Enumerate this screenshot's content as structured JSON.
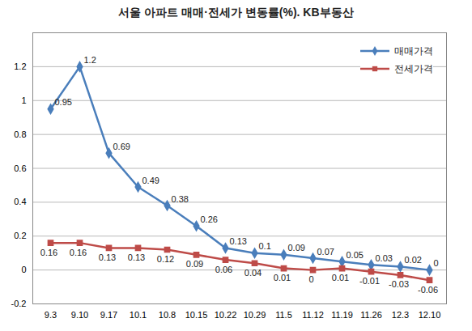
{
  "chart_data": {
    "type": "line",
    "title": "서울 아파트 매매·전세가 변동률(%). KB부동산",
    "categories": [
      "9.3",
      "9.10",
      "9.17",
      "10.1",
      "10.8",
      "10.15",
      "10.22",
      "10.29",
      "11.5",
      "11.12",
      "11.19",
      "11.26",
      "12.3",
      "12.10"
    ],
    "series": [
      {
        "name": "매매가격",
        "color": "#4a7ebb",
        "marker": "diamond",
        "values": [
          0.95,
          1.2,
          0.69,
          0.49,
          0.38,
          0.26,
          0.13,
          0.1,
          0.09,
          0.07,
          0.05,
          0.03,
          0.02,
          0
        ]
      },
      {
        "name": "전세가격",
        "color": "#be4b48",
        "marker": "square",
        "values": [
          0.16,
          0.16,
          0.13,
          0.13,
          0.12,
          0.09,
          0.06,
          0.04,
          0.01,
          0,
          0.01,
          -0.01,
          -0.03,
          -0.06
        ]
      }
    ],
    "ylim": [
      -0.2,
      1.4
    ],
    "yticks": [
      -0.2,
      0,
      0.2,
      0.4,
      0.6,
      0.8,
      1,
      1.2
    ],
    "grid": true,
    "legend": "top-right",
    "data_labels": true
  }
}
